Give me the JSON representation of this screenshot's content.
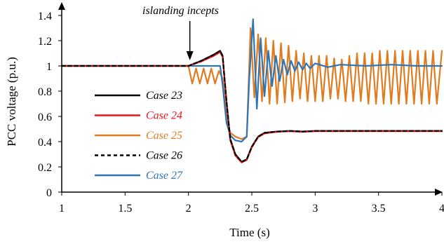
{
  "chart_data": {
    "type": "line",
    "xlabel": "Time (s)",
    "ylabel": "PCC voltage (p.u.)",
    "xlim": [
      1,
      4
    ],
    "ylim": [
      0,
      1.4
    ],
    "x_ticks": [
      "1",
      "1.5",
      "2",
      "2.5",
      "3",
      "3.5",
      "4"
    ],
    "y_ticks": [
      "0",
      "0.2",
      "0.4",
      "0.6",
      "0.8",
      "1",
      "1.2",
      "1.4"
    ],
    "grid": false,
    "legend_position": "left",
    "annotation": {
      "text": "islanding incepts",
      "x": 2.0,
      "y": 1.0
    },
    "series": [
      {
        "name": "Case 23",
        "color": "#000000",
        "dash": "solid",
        "points": [
          [
            1.0,
            1.0
          ],
          [
            2.0,
            1.0
          ],
          [
            2.1,
            1.04
          ],
          [
            2.2,
            1.09
          ],
          [
            2.25,
            1.12
          ],
          [
            2.27,
            1.08
          ],
          [
            2.3,
            0.72
          ],
          [
            2.33,
            0.42
          ],
          [
            2.37,
            0.3
          ],
          [
            2.42,
            0.24
          ],
          [
            2.46,
            0.26
          ],
          [
            2.5,
            0.36
          ],
          [
            2.55,
            0.44
          ],
          [
            2.6,
            0.47
          ],
          [
            2.7,
            0.48
          ],
          [
            2.8,
            0.485
          ],
          [
            2.9,
            0.48
          ],
          [
            3.0,
            0.485
          ],
          [
            3.5,
            0.485
          ],
          [
            4.0,
            0.485
          ]
        ]
      },
      {
        "name": "Case 24",
        "color": "#e8141b",
        "dash": "solid",
        "points": [
          [
            1.0,
            1.0
          ],
          [
            2.0,
            1.0
          ],
          [
            2.1,
            1.035
          ],
          [
            2.2,
            1.08
          ],
          [
            2.25,
            1.11
          ],
          [
            2.27,
            1.07
          ],
          [
            2.3,
            0.71
          ],
          [
            2.33,
            0.41
          ],
          [
            2.37,
            0.29
          ],
          [
            2.42,
            0.235
          ],
          [
            2.46,
            0.255
          ],
          [
            2.5,
            0.355
          ],
          [
            2.55,
            0.435
          ],
          [
            2.6,
            0.465
          ],
          [
            2.7,
            0.478
          ],
          [
            2.8,
            0.483
          ],
          [
            2.9,
            0.478
          ],
          [
            3.0,
            0.483
          ],
          [
            3.5,
            0.483
          ],
          [
            4.0,
            0.483
          ]
        ]
      },
      {
        "name": "Case 25",
        "color": "#e07b20",
        "dash": "solid",
        "points": [
          [
            1.0,
            1.0
          ],
          [
            2.0,
            1.0
          ],
          [
            2.03,
            0.86
          ],
          [
            2.06,
            0.98
          ],
          [
            2.09,
            0.86
          ],
          [
            2.12,
            0.98
          ],
          [
            2.15,
            0.86
          ],
          [
            2.18,
            0.98
          ],
          [
            2.21,
            0.86
          ],
          [
            2.24,
            0.96
          ],
          [
            2.27,
            0.9
          ],
          [
            2.3,
            0.58
          ],
          [
            2.33,
            0.47
          ],
          [
            2.37,
            0.44
          ],
          [
            2.42,
            0.42
          ],
          [
            2.46,
            0.44
          ],
          [
            2.49,
            1.3
          ],
          [
            2.52,
            0.75
          ],
          [
            2.55,
            1.25
          ],
          [
            2.58,
            0.72
          ],
          [
            2.61,
            1.22
          ],
          [
            2.64,
            0.7
          ],
          [
            2.67,
            1.2
          ],
          [
            2.7,
            0.7
          ],
          [
            2.73,
            1.18
          ],
          [
            2.76,
            0.71
          ],
          [
            2.79,
            1.16
          ],
          [
            2.82,
            0.72
          ],
          [
            2.85,
            1.12
          ],
          [
            2.88,
            0.74
          ],
          [
            2.91,
            1.1
          ],
          [
            2.94,
            0.72
          ],
          [
            2.97,
            1.08
          ],
          [
            3.0,
            0.72
          ],
          [
            3.03,
            1.08
          ],
          [
            3.06,
            0.72
          ],
          [
            3.09,
            1.08
          ],
          [
            3.12,
            0.74
          ],
          [
            3.15,
            1.06
          ],
          [
            3.18,
            0.74
          ],
          [
            3.21,
            1.05
          ],
          [
            3.24,
            0.72
          ],
          [
            3.27,
            1.08
          ],
          [
            3.3,
            0.72
          ],
          [
            3.33,
            1.1
          ],
          [
            3.36,
            0.72
          ],
          [
            3.39,
            1.1
          ],
          [
            3.42,
            0.7
          ],
          [
            3.45,
            1.1
          ],
          [
            3.48,
            0.7
          ],
          [
            3.51,
            1.12
          ],
          [
            3.54,
            0.7
          ],
          [
            3.57,
            1.12
          ],
          [
            3.6,
            0.7
          ],
          [
            3.63,
            1.12
          ],
          [
            3.66,
            0.7
          ],
          [
            3.69,
            1.12
          ],
          [
            3.72,
            0.7
          ],
          [
            3.75,
            1.12
          ],
          [
            3.78,
            0.7
          ],
          [
            3.81,
            1.12
          ],
          [
            3.84,
            0.7
          ],
          [
            3.87,
            1.12
          ],
          [
            3.9,
            0.7
          ],
          [
            3.93,
            1.12
          ],
          [
            3.96,
            0.7
          ],
          [
            4.0,
            1.12
          ]
        ]
      },
      {
        "name": "Case 26",
        "color": "#000000",
        "dash": "dashed",
        "points": [
          [
            1.0,
            1.0
          ],
          [
            2.0,
            1.0
          ],
          [
            2.1,
            1.04
          ],
          [
            2.2,
            1.09
          ],
          [
            2.25,
            1.12
          ],
          [
            2.27,
            1.08
          ],
          [
            2.3,
            0.72
          ],
          [
            2.33,
            0.42
          ],
          [
            2.37,
            0.3
          ],
          [
            2.42,
            0.24
          ],
          [
            2.46,
            0.26
          ],
          [
            2.5,
            0.36
          ],
          [
            2.55,
            0.44
          ],
          [
            2.6,
            0.47
          ],
          [
            2.7,
            0.48
          ],
          [
            2.8,
            0.485
          ],
          [
            2.9,
            0.48
          ],
          [
            3.0,
            0.485
          ],
          [
            3.5,
            0.485
          ],
          [
            4.0,
            0.485
          ]
        ]
      },
      {
        "name": "Case 27",
        "color": "#2e75b6",
        "dash": "solid",
        "points": [
          [
            1.0,
            1.0
          ],
          [
            2.0,
            1.0
          ],
          [
            2.1,
            1.0
          ],
          [
            2.2,
            1.0
          ],
          [
            2.25,
            1.0
          ],
          [
            2.27,
            0.85
          ],
          [
            2.3,
            0.55
          ],
          [
            2.33,
            0.45
          ],
          [
            2.37,
            0.41
          ],
          [
            2.42,
            0.4
          ],
          [
            2.46,
            0.44
          ],
          [
            2.48,
            0.9
          ],
          [
            2.51,
            1.37
          ],
          [
            2.54,
            0.66
          ],
          [
            2.57,
            1.22
          ],
          [
            2.6,
            0.76
          ],
          [
            2.63,
            1.12
          ],
          [
            2.66,
            0.84
          ],
          [
            2.69,
            1.08
          ],
          [
            2.72,
            0.88
          ],
          [
            2.75,
            1.05
          ],
          [
            2.78,
            0.93
          ],
          [
            2.81,
            1.04
          ],
          [
            2.84,
            0.96
          ],
          [
            2.87,
            1.03
          ],
          [
            2.9,
            0.97
          ],
          [
            2.93,
            1.02
          ],
          [
            2.96,
            0.98
          ],
          [
            3.0,
            1.02
          ],
          [
            3.1,
            0.99
          ],
          [
            3.2,
            1.01
          ],
          [
            3.4,
            1.0
          ],
          [
            3.6,
            1.01
          ],
          [
            3.8,
            1.0
          ],
          [
            4.0,
            1.0
          ]
        ]
      }
    ]
  }
}
